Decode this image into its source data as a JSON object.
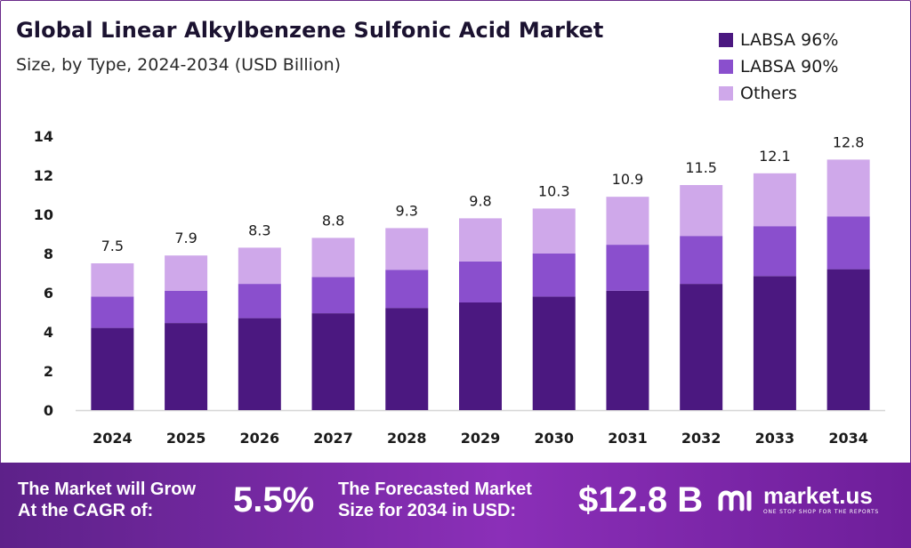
{
  "chart_data": {
    "type": "bar",
    "stacked": true,
    "title": "Global Linear Alkylbenzene Sulfonic Acid Market",
    "subtitle": "Size, by Type, 2024-2034 (USD Billion)",
    "categories": [
      "2024",
      "2025",
      "2026",
      "2027",
      "2028",
      "2029",
      "2030",
      "2031",
      "2032",
      "2033",
      "2034"
    ],
    "series": [
      {
        "name": "LABSA 96%",
        "color": "#4b1880",
        "values": [
          4.2,
          4.45,
          4.7,
          4.95,
          5.22,
          5.5,
          5.8,
          6.1,
          6.45,
          6.85,
          7.2
        ]
      },
      {
        "name": "LABSA 90%",
        "color": "#8a4fcd",
        "values": [
          1.6,
          1.65,
          1.75,
          1.85,
          1.95,
          2.1,
          2.2,
          2.35,
          2.45,
          2.55,
          2.7
        ]
      },
      {
        "name": "Others",
        "color": "#cfa8ea",
        "values": [
          1.7,
          1.8,
          1.85,
          2.0,
          2.13,
          2.2,
          2.3,
          2.45,
          2.6,
          2.7,
          2.9
        ]
      }
    ],
    "totals": [
      "7.5",
      "7.9",
      "8.3",
      "8.8",
      "9.3",
      "9.8",
      "10.3",
      "10.9",
      "11.5",
      "12.1",
      "12.8"
    ],
    "yticks": [
      "0",
      "2",
      "4",
      "6",
      "8",
      "10",
      "12",
      "14"
    ],
    "ylim": [
      0,
      14
    ],
    "legend_position": "top-right"
  },
  "footer": {
    "grow_line1": "The Market will Grow",
    "grow_line2": "At the CAGR of:",
    "cagr": "5.5%",
    "forecast_line1": "The Forecasted Market",
    "forecast_line2": "Size for 2034 in USD:",
    "forecast_value": "$12.8 B",
    "brand_name": "market.us",
    "brand_tagline": "ONE STOP SHOP FOR THE REPORTS"
  }
}
